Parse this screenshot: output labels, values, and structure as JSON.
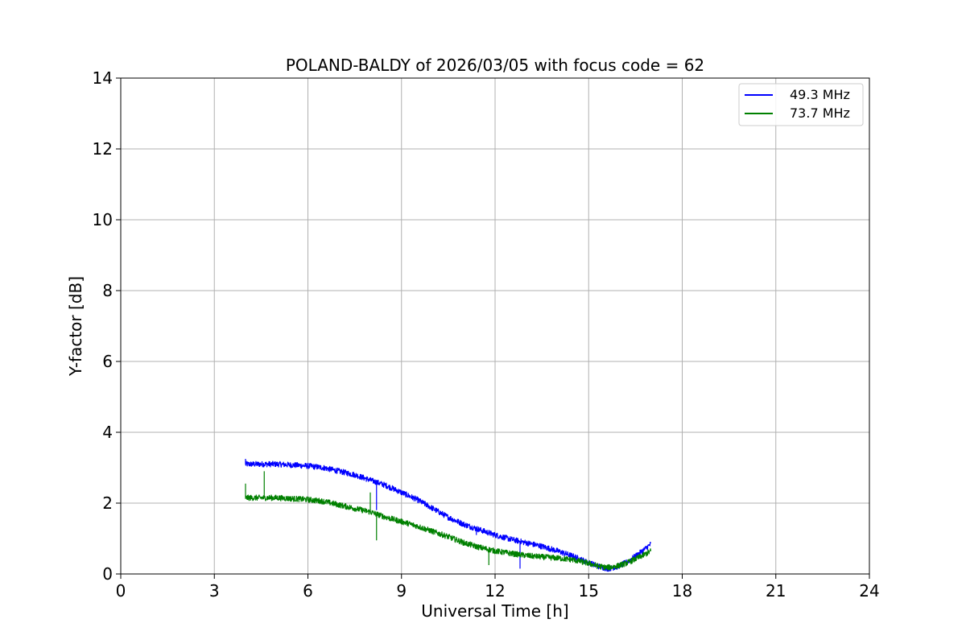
{
  "chart_data": {
    "type": "line",
    "title": "POLAND-BALDY of 2026/03/05 with focus code = 62",
    "xlabel": "Universal Time [h]",
    "ylabel": "Y-factor [dB]",
    "xlim": [
      0,
      24
    ],
    "ylim": [
      0,
      14
    ],
    "xticks": [
      0,
      3,
      6,
      9,
      12,
      15,
      18,
      21,
      24
    ],
    "yticks": [
      0,
      2,
      4,
      6,
      8,
      10,
      12,
      14
    ],
    "grid": true,
    "legend_position": "top-right",
    "series": [
      {
        "name": "49.3 MHz",
        "color": "#0000ff",
        "noise": 0.08,
        "x": [
          4.0,
          5.0,
          6.0,
          6.5,
          7.0,
          7.5,
          8.0,
          8.5,
          9.0,
          9.5,
          10.0,
          10.5,
          11.0,
          11.5,
          12.0,
          12.5,
          13.0,
          13.5,
          14.0,
          14.5,
          15.0,
          15.3,
          15.6,
          15.9,
          16.2,
          16.5,
          16.8,
          17.0
        ],
        "y": [
          3.1,
          3.1,
          3.05,
          3.0,
          2.9,
          2.8,
          2.65,
          2.5,
          2.3,
          2.1,
          1.85,
          1.6,
          1.4,
          1.25,
          1.1,
          0.98,
          0.88,
          0.78,
          0.65,
          0.5,
          0.32,
          0.22,
          0.15,
          0.2,
          0.32,
          0.5,
          0.7,
          0.85
        ],
        "spikes": [
          {
            "x": 4.0,
            "y": 3.25
          },
          {
            "x": 8.2,
            "y": 1.8
          },
          {
            "x": 11.4,
            "y": 1.1
          },
          {
            "x": 12.8,
            "y": 0.15
          }
        ]
      },
      {
        "name": "73.7 MHz",
        "color": "#008000",
        "noise": 0.08,
        "x": [
          4.0,
          5.0,
          6.0,
          6.5,
          7.0,
          7.5,
          8.0,
          8.5,
          9.0,
          9.5,
          10.0,
          10.5,
          11.0,
          11.5,
          12.0,
          12.5,
          13.0,
          13.5,
          14.0,
          14.5,
          15.0,
          15.3,
          15.6,
          15.9,
          16.2,
          16.5,
          16.8,
          17.0
        ],
        "y": [
          2.15,
          2.15,
          2.1,
          2.05,
          1.95,
          1.85,
          1.75,
          1.6,
          1.48,
          1.35,
          1.2,
          1.05,
          0.88,
          0.75,
          0.65,
          0.58,
          0.52,
          0.48,
          0.45,
          0.4,
          0.3,
          0.22,
          0.18,
          0.22,
          0.3,
          0.42,
          0.55,
          0.65
        ],
        "spikes": [
          {
            "x": 4.0,
            "y": 2.55
          },
          {
            "x": 4.6,
            "y": 2.9
          },
          {
            "x": 8.0,
            "y": 2.3
          },
          {
            "x": 8.2,
            "y": 0.95
          },
          {
            "x": 11.8,
            "y": 0.25
          }
        ]
      }
    ]
  }
}
